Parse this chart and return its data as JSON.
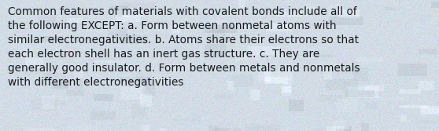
{
  "text": "Common features of materials with covalent bonds include all of\nthe following EXCEPT: a. Form between nonmetal atoms with\nsimilar electronegativities. b. Atoms share their electrons so that\neach electron shell has an inert gas structure. c. They are\ngenerally good insulator. d. Form between metals and nonmetals\nwith different electronegativities",
  "bg_base": [
    210,
    220,
    230
  ],
  "bg_noise_std": 6,
  "text_color": "#1a1a1a",
  "font_size": 9.8,
  "fig_width": 5.58,
  "fig_height": 1.67,
  "dpi": 100
}
